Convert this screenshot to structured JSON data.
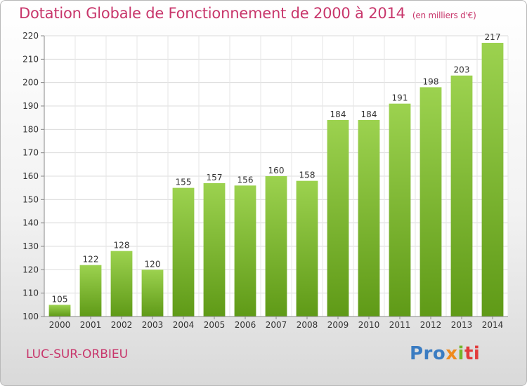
{
  "header": {
    "title": "Dotation Globale de Fonctionnement de 2000 à 2014",
    "subtitle": "(en milliers d'€)"
  },
  "footer": {
    "commune": "LUC-SUR-ORBIEU",
    "logo": [
      "Pro",
      "x",
      "i",
      "ti"
    ]
  },
  "colors": {
    "bar_top": "#9cd24f",
    "bar_bottom": "#5f9a17",
    "title": "#c8366b"
  },
  "chart_data": {
    "type": "bar",
    "title": "Dotation Globale de Fonctionnement de 2000 à 2014",
    "subtitle": "(en milliers d'€)",
    "xlabel": "",
    "ylabel": "",
    "categories": [
      "2000",
      "2001",
      "2002",
      "2003",
      "2004",
      "2005",
      "2006",
      "2007",
      "2008",
      "2009",
      "2010",
      "2011",
      "2012",
      "2013",
      "2014"
    ],
    "values": [
      105,
      122,
      128,
      120,
      155,
      157,
      156,
      160,
      158,
      184,
      184,
      191,
      198,
      203,
      217
    ],
    "ylim": [
      100,
      220
    ],
    "yticks": [
      100,
      110,
      120,
      130,
      140,
      150,
      160,
      170,
      180,
      190,
      200,
      210,
      220
    ],
    "grid": true,
    "legend": "none"
  }
}
